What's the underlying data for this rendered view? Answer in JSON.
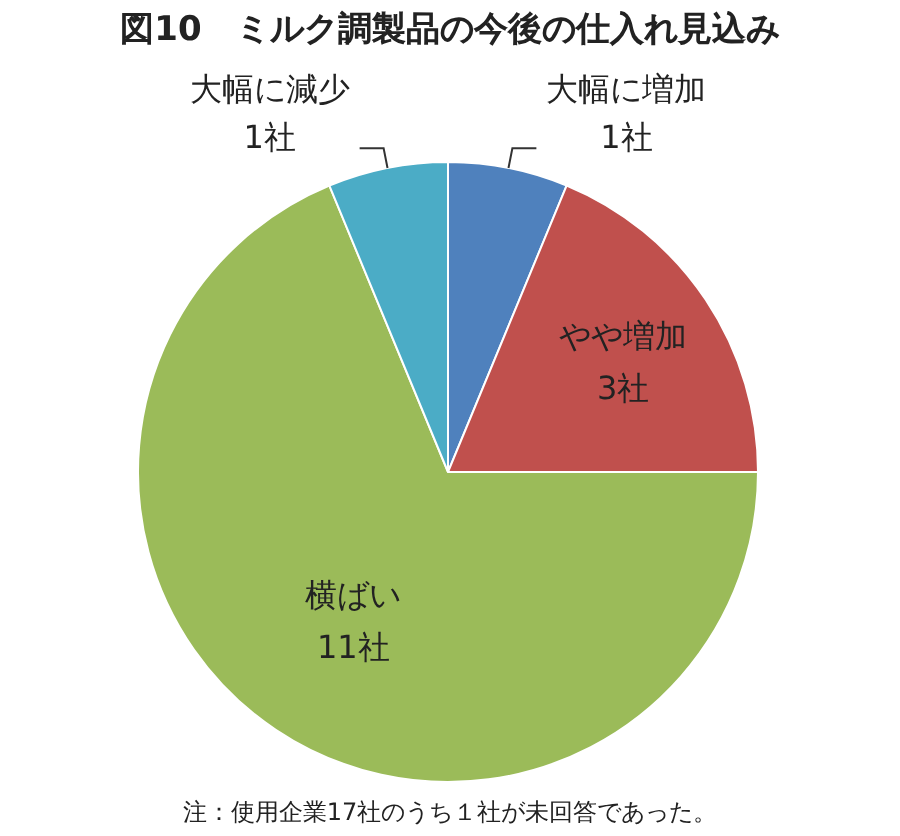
{
  "chart_data": {
    "type": "pie",
    "title": "図10　ミルク調製品の今後の仕入れ見込み",
    "categories": [
      "大幅に増加",
      "やや増加",
      "横ばい",
      "大幅に減少"
    ],
    "values": [
      1,
      3,
      11,
      1
    ],
    "value_labels": [
      "1社",
      "3社",
      "11社",
      "1社"
    ],
    "colors": [
      "#4f81bd",
      "#c0504d",
      "#9bbb59",
      "#4bacc6"
    ],
    "annotations": [
      "注：使用企業17社のうち１社が未回答であった。"
    ]
  }
}
